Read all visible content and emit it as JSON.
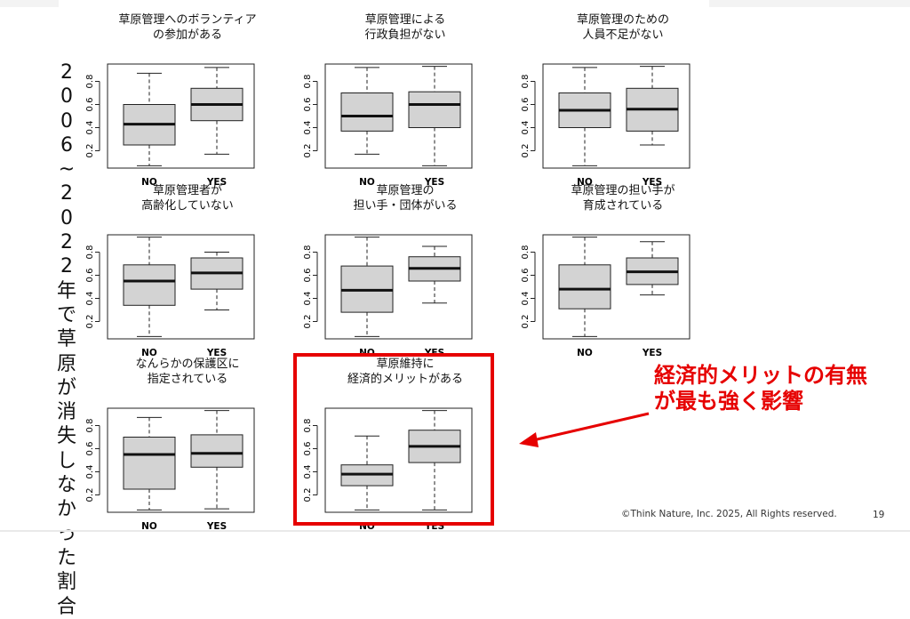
{
  "slide": {
    "vertical_title": [
      "2",
      "0",
      "0",
      "6",
      "~",
      "2",
      "0",
      "2",
      "2",
      "年",
      "で",
      "草",
      "原",
      "が",
      "消",
      "失",
      "し",
      "な",
      "か",
      "っ",
      "た",
      "割",
      "合"
    ],
    "callout": [
      "経済的メリットの有無",
      "が最も強く影響"
    ],
    "footer": "©Think Nature, Inc. 2025, All Rights reserved.",
    "page_number": "19",
    "colors": {
      "highlight": "#e60000",
      "box_fill": "#d3d3d3"
    }
  },
  "chart_data": [
    {
      "type": "boxplot",
      "title": [
        "草原管理へのボランティア",
        "の参加がある"
      ],
      "categories": [
        "NO",
        "YES"
      ],
      "ylim": [
        0.05,
        0.95
      ],
      "yticks": [
        "0.2",
        "0.4",
        "0.6",
        "0.8"
      ],
      "boxes": [
        {
          "whisker_low": 0.07,
          "q1": 0.25,
          "median": 0.43,
          "q3": 0.6,
          "whisker_high": 0.87
        },
        {
          "whisker_low": 0.17,
          "q1": 0.46,
          "median": 0.6,
          "q3": 0.74,
          "whisker_high": 0.92
        }
      ]
    },
    {
      "type": "boxplot",
      "title": [
        "草原管理による",
        "行政負担がない"
      ],
      "categories": [
        "NO",
        "YES"
      ],
      "ylim": [
        0.05,
        0.95
      ],
      "yticks": [
        "0.2",
        "0.4",
        "0.6",
        "0.8"
      ],
      "boxes": [
        {
          "whisker_low": 0.17,
          "q1": 0.37,
          "median": 0.5,
          "q3": 0.7,
          "whisker_high": 0.92
        },
        {
          "whisker_low": 0.07,
          "q1": 0.4,
          "median": 0.6,
          "q3": 0.71,
          "whisker_high": 0.93
        }
      ]
    },
    {
      "type": "boxplot",
      "title": [
        "草原管理のための",
        "人員不足がない"
      ],
      "categories": [
        "NO",
        "YES"
      ],
      "ylim": [
        0.05,
        0.95
      ],
      "yticks": [
        "0.2",
        "0.4",
        "0.6",
        "0.8"
      ],
      "boxes": [
        {
          "whisker_low": 0.07,
          "q1": 0.4,
          "median": 0.55,
          "q3": 0.7,
          "whisker_high": 0.92
        },
        {
          "whisker_low": 0.25,
          "q1": 0.37,
          "median": 0.56,
          "q3": 0.74,
          "whisker_high": 0.93
        }
      ]
    },
    {
      "type": "boxplot",
      "title": [
        "草原管理者が",
        "高齢化していない"
      ],
      "categories": [
        "NO",
        "YES"
      ],
      "ylim": [
        0.05,
        0.95
      ],
      "yticks": [
        "0.2",
        "0.4",
        "0.6",
        "0.8"
      ],
      "boxes": [
        {
          "whisker_low": 0.07,
          "q1": 0.34,
          "median": 0.55,
          "q3": 0.69,
          "whisker_high": 0.93
        },
        {
          "whisker_low": 0.3,
          "q1": 0.48,
          "median": 0.62,
          "q3": 0.75,
          "whisker_high": 0.8
        }
      ]
    },
    {
      "type": "boxplot",
      "title": [
        "草原管理の",
        "担い手・団体がいる"
      ],
      "categories": [
        "NO",
        "YES"
      ],
      "ylim": [
        0.05,
        0.95
      ],
      "yticks": [
        "0.2",
        "0.4",
        "0.6",
        "0.8"
      ],
      "boxes": [
        {
          "whisker_low": 0.07,
          "q1": 0.28,
          "median": 0.47,
          "q3": 0.68,
          "whisker_high": 0.93
        },
        {
          "whisker_low": 0.36,
          "q1": 0.55,
          "median": 0.66,
          "q3": 0.76,
          "whisker_high": 0.85
        }
      ]
    },
    {
      "type": "boxplot",
      "title": [
        "草原管理の担い手が",
        "育成されている"
      ],
      "categories": [
        "NO",
        "YES"
      ],
      "ylim": [
        0.05,
        0.95
      ],
      "yticks": [
        "0.2",
        "0.4",
        "0.6",
        "0.8"
      ],
      "boxes": [
        {
          "whisker_low": 0.07,
          "q1": 0.31,
          "median": 0.48,
          "q3": 0.69,
          "whisker_high": 0.93
        },
        {
          "whisker_low": 0.43,
          "q1": 0.52,
          "median": 0.63,
          "q3": 0.75,
          "whisker_high": 0.89
        }
      ]
    },
    {
      "type": "boxplot",
      "title": [
        "なんらかの保護区に",
        "指定されている"
      ],
      "categories": [
        "NO",
        "YES"
      ],
      "ylim": [
        0.05,
        0.95
      ],
      "yticks": [
        "0.2",
        "0.4",
        "0.6",
        "0.8"
      ],
      "boxes": [
        {
          "whisker_low": 0.07,
          "q1": 0.25,
          "median": 0.55,
          "q3": 0.7,
          "whisker_high": 0.87
        },
        {
          "whisker_low": 0.08,
          "q1": 0.44,
          "median": 0.56,
          "q3": 0.72,
          "whisker_high": 0.93
        }
      ]
    },
    {
      "type": "boxplot",
      "title": [
        "草原維持に",
        "経済的メリットがある"
      ],
      "categories": [
        "NO",
        "YES"
      ],
      "ylim": [
        0.05,
        0.95
      ],
      "yticks": [
        "0.2",
        "0.4",
        "0.6",
        "0.8"
      ],
      "boxes": [
        {
          "whisker_low": 0.07,
          "q1": 0.28,
          "median": 0.38,
          "q3": 0.46,
          "whisker_high": 0.71
        },
        {
          "whisker_low": 0.07,
          "q1": 0.48,
          "median": 0.62,
          "q3": 0.76,
          "whisker_high": 0.93
        }
      ]
    }
  ]
}
